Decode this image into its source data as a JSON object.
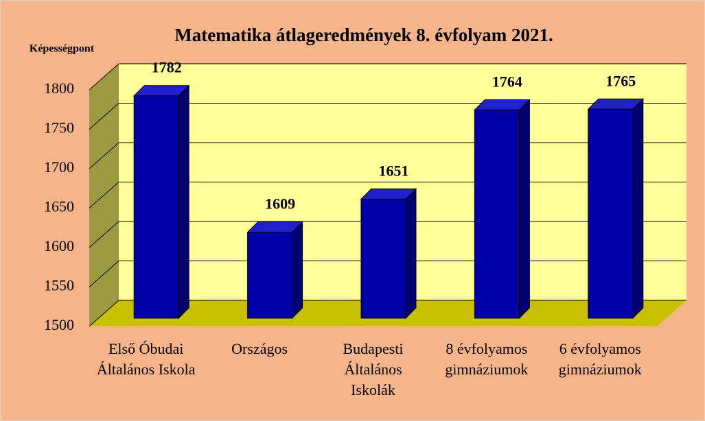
{
  "chart_data": {
    "type": "bar3d",
    "title": "Matematika átlageredmények 8. évfolyam 2021.",
    "y_axis_label": "Képességpont",
    "categories": [
      "Első Óbudai Általános Iskola",
      "Országos",
      "Budapesti Általános Iskolák",
      "8 évfolyamos gimnáziumok",
      "6 évfolyamos gimnáziumok"
    ],
    "values": [
      1782,
      1609,
      1651,
      1764,
      1765
    ],
    "color": "#0000a8",
    "ylim": [
      1500,
      1800
    ],
    "yticks": [
      1500,
      1550,
      1600,
      1650,
      1700,
      1750,
      1800
    ],
    "grid": true
  }
}
